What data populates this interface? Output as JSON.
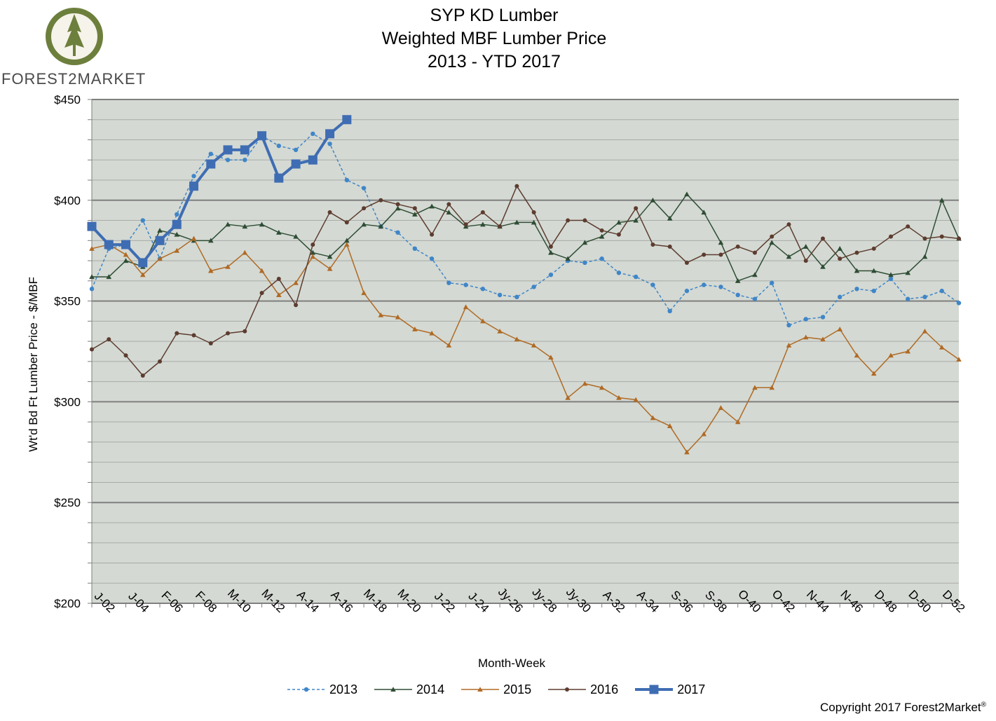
{
  "logo": {
    "text": "FOREST2MARKET"
  },
  "title_lines": [
    "SYP KD Lumber",
    "Weighted MBF Lumber Price",
    "2013 - YTD 2017"
  ],
  "copyright": "Copyright 2017 Forest2Market",
  "copyright_mark": "®",
  "colors": {
    "plot_bg": "#d4d9d3",
    "c2013": "#3f86c8",
    "c2014": "#2e4d34",
    "c2015": "#b06a24",
    "c2016": "#5d3c2f",
    "c2017": "#3f6db3"
  },
  "chart_data": {
    "type": "line",
    "title": "SYP KD Lumber Weighted MBF Lumber Price 2013 - YTD 2017",
    "xlabel": "Month-Week",
    "ylabel": "Wt'd Bd Ft Lumber  Price - $/MBF",
    "ylim": [
      200,
      450
    ],
    "y_ticks": [
      "$200",
      "$250",
      "$300",
      "$350",
      "$400",
      "$450"
    ],
    "x_tick_labels": [
      "J-02",
      "J-04",
      "F-06",
      "F-08",
      "M-10",
      "M-12",
      "A-14",
      "A-16",
      "M-18",
      "M-20",
      "J-22",
      "J-24",
      "Jy-26",
      "Jy-28",
      "Jy-30",
      "A-32",
      "A-34",
      "S-36",
      "S-38",
      "O-40",
      "O-42",
      "N-44",
      "N-46",
      "D-48",
      "D-50",
      "D-52"
    ],
    "weeks": 52,
    "grid": "horizontal",
    "legend_position": "bottom",
    "series": [
      {
        "name": "2013",
        "values": [
          356,
          376,
          378,
          390,
          371,
          393,
          412,
          423,
          420,
          420,
          432,
          427,
          425,
          433,
          428,
          410,
          406,
          387,
          384,
          376,
          371,
          359,
          358,
          356,
          353,
          352,
          357,
          363,
          370,
          369,
          371,
          364,
          362,
          358,
          345,
          355,
          358,
          357,
          353,
          351,
          359,
          338,
          341,
          342,
          352,
          356,
          355,
          361,
          351,
          352,
          355,
          349
        ]
      },
      {
        "name": "2014",
        "values": [
          362,
          362,
          370,
          367,
          385,
          383,
          380,
          380,
          388,
          387,
          388,
          384,
          382,
          374,
          372,
          380,
          388,
          387,
          396,
          393,
          397,
          394,
          387,
          388,
          387,
          389,
          389,
          374,
          371,
          379,
          382,
          389,
          390,
          400,
          391,
          403,
          394,
          379,
          360,
          363,
          379,
          372,
          377,
          367,
          376,
          365,
          365,
          363,
          364,
          372,
          400,
          381
        ]
      },
      {
        "name": "2015",
        "values": [
          376,
          378,
          373,
          363,
          371,
          375,
          381,
          365,
          367,
          374,
          365,
          353,
          359,
          372,
          366,
          378,
          354,
          343,
          342,
          336,
          334,
          328,
          347,
          340,
          335,
          331,
          328,
          322,
          302,
          309,
          307,
          302,
          301,
          292,
          288,
          275,
          284,
          297,
          290,
          307,
          307,
          328,
          332,
          331,
          336,
          323,
          314,
          323,
          325,
          335,
          327,
          321
        ]
      },
      {
        "name": "2016",
        "values": [
          326,
          331,
          323,
          313,
          320,
          334,
          333,
          329,
          334,
          335,
          354,
          361,
          348,
          378,
          394,
          389,
          396,
          400,
          398,
          396,
          383,
          398,
          388,
          394,
          387,
          407,
          394,
          377,
          390,
          390,
          385,
          383,
          396,
          378,
          377,
          369,
          373,
          373,
          377,
          374,
          382,
          388,
          370,
          381,
          371,
          374,
          376,
          382,
          387,
          381,
          382,
          381
        ]
      },
      {
        "name": "2017",
        "values": [
          387,
          378,
          378,
          369,
          380,
          388,
          407,
          418,
          425,
          425,
          432,
          411,
          418,
          420,
          433,
          440
        ]
      }
    ]
  }
}
